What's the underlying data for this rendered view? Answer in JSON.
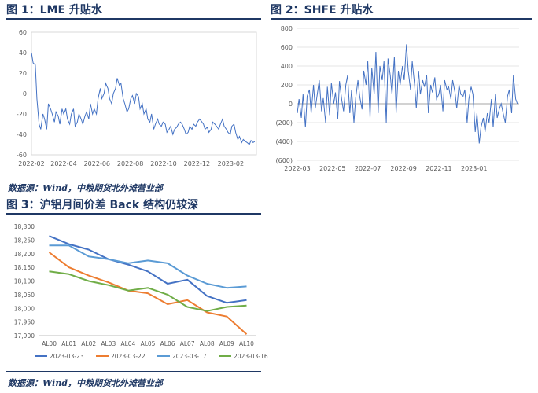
{
  "fig1": {
    "title": "图 1：LME 升贴水"
  },
  "fig2": {
    "title": "图 2：SHFE 升贴水"
  },
  "fig3": {
    "title": "图 3：沪铝月间价差 Back 结构仍较深"
  },
  "source1": "数据源：Wind，中粮期货北外滩营业部",
  "source2": "数据源：Wind，中粮期货北外滩营业部",
  "colors": {
    "title": "#1f3864",
    "line": "#4472c4",
    "s1": "#4472c4",
    "s2": "#ed7d31",
    "s3": "#5b9bd5",
    "s4": "#70ad47"
  },
  "chart_data": [
    {
      "type": "line",
      "title": "",
      "x_tick_labels": [
        "2022-02",
        "2022-04",
        "2022-06",
        "2022-08",
        "2022-10",
        "2022-12",
        "2023-02"
      ],
      "x_ticks": [
        "2022-02-01",
        "2022-04-01",
        "2022-06-01",
        "2022-08-01",
        "2022-10-01",
        "2022-12-01",
        "2023-02-01"
      ],
      "xlim": [
        "2022-02-01",
        "2023-03-20"
      ],
      "ylim": [
        -60,
        60
      ],
      "y_ticks": [
        -60,
        -40,
        -20,
        0,
        20,
        40,
        60
      ],
      "grid": false,
      "series": [
        {
          "x": [
            "2022-02-01",
            "2022-02-04",
            "2022-02-08",
            "2022-02-11",
            "2022-02-15",
            "2022-02-18",
            "2022-02-22",
            "2022-02-25",
            "2022-03-01",
            "2022-03-04",
            "2022-03-08",
            "2022-03-11",
            "2022-03-15",
            "2022-03-18",
            "2022-03-22",
            "2022-03-25",
            "2022-03-29",
            "2022-04-01",
            "2022-04-05",
            "2022-04-08",
            "2022-04-12",
            "2022-04-15",
            "2022-04-19",
            "2022-04-22",
            "2022-04-26",
            "2022-04-29",
            "2022-05-03",
            "2022-05-06",
            "2022-05-10",
            "2022-05-13",
            "2022-05-17",
            "2022-05-20",
            "2022-05-24",
            "2022-05-27",
            "2022-05-31",
            "2022-06-03",
            "2022-06-07",
            "2022-06-10",
            "2022-06-14",
            "2022-06-17",
            "2022-06-21",
            "2022-06-24",
            "2022-06-28",
            "2022-07-01",
            "2022-07-05",
            "2022-07-08",
            "2022-07-12",
            "2022-07-15",
            "2022-07-19",
            "2022-07-22",
            "2022-07-26",
            "2022-07-29",
            "2022-08-02",
            "2022-08-05",
            "2022-08-09",
            "2022-08-12",
            "2022-08-16",
            "2022-08-19",
            "2022-08-23",
            "2022-08-26",
            "2022-08-30",
            "2022-09-02",
            "2022-09-06",
            "2022-09-09",
            "2022-09-13",
            "2022-09-16",
            "2022-09-20",
            "2022-09-23",
            "2022-09-27",
            "2022-09-30",
            "2022-10-04",
            "2022-10-07",
            "2022-10-11",
            "2022-10-14",
            "2022-10-18",
            "2022-10-21",
            "2022-10-25",
            "2022-10-28",
            "2022-11-01",
            "2022-11-04",
            "2022-11-08",
            "2022-11-11",
            "2022-11-15",
            "2022-11-18",
            "2022-11-22",
            "2022-11-25",
            "2022-11-29",
            "2022-12-02",
            "2022-12-06",
            "2022-12-09",
            "2022-12-13",
            "2022-12-16",
            "2022-12-20",
            "2022-12-23",
            "2022-12-27",
            "2022-12-30",
            "2023-01-03",
            "2023-01-06",
            "2023-01-10",
            "2023-01-13",
            "2023-01-17",
            "2023-01-20",
            "2023-01-24",
            "2023-01-27",
            "2023-01-31",
            "2023-02-03",
            "2023-02-07",
            "2023-02-10",
            "2023-02-14",
            "2023-02-17",
            "2023-02-21",
            "2023-02-24",
            "2023-02-28",
            "2023-03-03",
            "2023-03-07",
            "2023-03-10",
            "2023-03-14",
            "2023-03-17"
          ],
          "values": [
            40,
            30,
            28,
            -5,
            -30,
            -35,
            -20,
            -25,
            -35,
            -10,
            -15,
            -20,
            -28,
            -18,
            -22,
            -30,
            -15,
            -20,
            -15,
            -25,
            -30,
            -20,
            -15,
            -32,
            -28,
            -20,
            -25,
            -30,
            -22,
            -18,
            -25,
            -10,
            -20,
            -15,
            -20,
            -5,
            5,
            -5,
            0,
            10,
            5,
            -5,
            -10,
            0,
            5,
            15,
            8,
            10,
            -5,
            -10,
            -18,
            -15,
            -5,
            -2,
            -10,
            0,
            -3,
            -15,
            -10,
            -20,
            -15,
            -25,
            -28,
            -20,
            -35,
            -30,
            -25,
            -30,
            -32,
            -28,
            -30,
            -38,
            -35,
            -32,
            -40,
            -35,
            -33,
            -30,
            -28,
            -30,
            -35,
            -40,
            -38,
            -32,
            -35,
            -30,
            -32,
            -28,
            -25,
            -27,
            -30,
            -35,
            -33,
            -38,
            -35,
            -28,
            -30,
            -32,
            -35,
            -30,
            -25,
            -32,
            -35,
            -38,
            -40,
            -32,
            -30,
            -38,
            -45,
            -42,
            -48,
            -45,
            -47,
            -48,
            -50,
            -46,
            -48,
            -47
          ]
        }
      ]
    },
    {
      "type": "line",
      "title": "",
      "x_tick_labels": [
        "2022-03",
        "2022-05",
        "2022-07",
        "2022-09",
        "2022-11",
        "2023-01"
      ],
      "x_ticks": [
        "2022-03-01",
        "2022-05-01",
        "2022-07-01",
        "2022-09-01",
        "2022-11-01",
        "2023-01-01"
      ],
      "xlim": [
        "2022-03-01",
        "2023-03-20"
      ],
      "ylim": [
        -600,
        800
      ],
      "y_ticks": [
        -600,
        -400,
        -200,
        0,
        200,
        400,
        600,
        800
      ],
      "y_tick_labels": [
        "(600)",
        "(400)",
        "(200)",
        "0",
        "200",
        "400",
        "600",
        "800"
      ],
      "grid": true,
      "series": [
        {
          "x": [
            "2022-03-01",
            "2022-03-04",
            "2022-03-08",
            "2022-03-11",
            "2022-03-15",
            "2022-03-18",
            "2022-03-22",
            "2022-03-25",
            "2022-03-29",
            "2022-04-01",
            "2022-04-05",
            "2022-04-08",
            "2022-04-12",
            "2022-04-15",
            "2022-04-19",
            "2022-04-22",
            "2022-04-26",
            "2022-04-29",
            "2022-05-03",
            "2022-05-06",
            "2022-05-10",
            "2022-05-13",
            "2022-05-17",
            "2022-05-20",
            "2022-05-24",
            "2022-05-27",
            "2022-05-31",
            "2022-06-03",
            "2022-06-07",
            "2022-06-10",
            "2022-06-14",
            "2022-06-17",
            "2022-06-21",
            "2022-06-24",
            "2022-06-28",
            "2022-07-01",
            "2022-07-05",
            "2022-07-08",
            "2022-07-12",
            "2022-07-15",
            "2022-07-19",
            "2022-07-22",
            "2022-07-26",
            "2022-07-29",
            "2022-08-02",
            "2022-08-05",
            "2022-08-09",
            "2022-08-12",
            "2022-08-16",
            "2022-08-19",
            "2022-08-23",
            "2022-08-26",
            "2022-08-30",
            "2022-09-02",
            "2022-09-06",
            "2022-09-09",
            "2022-09-13",
            "2022-09-16",
            "2022-09-20",
            "2022-09-23",
            "2022-09-27",
            "2022-09-30",
            "2022-10-04",
            "2022-10-07",
            "2022-10-11",
            "2022-10-14",
            "2022-10-18",
            "2022-10-21",
            "2022-10-25",
            "2022-10-28",
            "2022-11-01",
            "2022-11-04",
            "2022-11-08",
            "2022-11-11",
            "2022-11-15",
            "2022-11-18",
            "2022-11-22",
            "2022-11-25",
            "2022-11-29",
            "2022-12-02",
            "2022-12-06",
            "2022-12-09",
            "2022-12-13",
            "2022-12-16",
            "2022-12-20",
            "2022-12-23",
            "2022-12-27",
            "2022-12-30",
            "2023-01-03",
            "2023-01-06",
            "2023-01-10",
            "2023-01-13",
            "2023-01-17",
            "2023-01-20",
            "2023-01-24",
            "2023-01-27",
            "2023-01-31",
            "2023-02-03",
            "2023-02-07",
            "2023-02-10",
            "2023-02-14",
            "2023-02-17",
            "2023-02-21",
            "2023-02-24",
            "2023-02-28",
            "2023-03-03",
            "2023-03-07",
            "2023-03-10",
            "2023-03-14",
            "2023-03-17"
          ],
          "values": [
            -100,
            50,
            -150,
            100,
            -250,
            80,
            150,
            -100,
            200,
            -50,
            120,
            250,
            -80,
            60,
            -200,
            180,
            -120,
            220,
            0,
            120,
            -160,
            240,
            40,
            -80,
            200,
            300,
            -100,
            150,
            -200,
            60,
            250,
            80,
            -60,
            350,
            200,
            450,
            -150,
            380,
            100,
            550,
            -100,
            400,
            250,
            450,
            -200,
            480,
            300,
            100,
            500,
            -100,
            350,
            200,
            400,
            250,
            630,
            350,
            150,
            450,
            200,
            -50,
            350,
            100,
            250,
            180,
            300,
            -100,
            200,
            120,
            280,
            50,
            100,
            200,
            -80,
            250,
            150,
            180,
            50,
            250,
            120,
            -50,
            200,
            100,
            80,
            150,
            -200,
            50,
            180,
            100,
            -300,
            -100,
            -420,
            -250,
            -150,
            -300,
            -100,
            -200,
            50,
            -250,
            100,
            -150,
            -50,
            0,
            -120,
            -200,
            80,
            150,
            -100,
            300,
            50,
            0
          ]
        }
      ]
    },
    {
      "type": "line",
      "title": "",
      "categories": [
        "AL00",
        "AL01",
        "AL02",
        "AL03",
        "AL04",
        "AL05",
        "AL06",
        "AL07",
        "AL08",
        "AL09",
        "AL10"
      ],
      "ylim": [
        17900,
        18300
      ],
      "y_ticks": [
        17900,
        17950,
        18000,
        18050,
        18100,
        18150,
        18200,
        18250,
        18300
      ],
      "y_tick_labels": [
        "17,900",
        "17,950",
        "18,000",
        "18,050",
        "18,100",
        "18,150",
        "18,200",
        "18,250",
        "18,300"
      ],
      "grid": false,
      "legend": "bottom",
      "series": [
        {
          "name": "2023-03-23",
          "values": [
            18265,
            18235,
            18215,
            18180,
            18160,
            18135,
            18090,
            18105,
            18045,
            18020,
            18030
          ]
        },
        {
          "name": "2023-03-22",
          "values": [
            18205,
            18150,
            18120,
            18095,
            18065,
            18055,
            18015,
            18030,
            17985,
            17970,
            17905
          ]
        },
        {
          "name": "2023-03-17",
          "values": [
            18230,
            18230,
            18190,
            18180,
            18165,
            18175,
            18165,
            18120,
            18090,
            18075,
            18080
          ]
        },
        {
          "name": "2023-03-16",
          "values": [
            18135,
            18125,
            18100,
            18085,
            18065,
            18075,
            18050,
            18005,
            17990,
            18005,
            18010
          ]
        }
      ]
    }
  ]
}
